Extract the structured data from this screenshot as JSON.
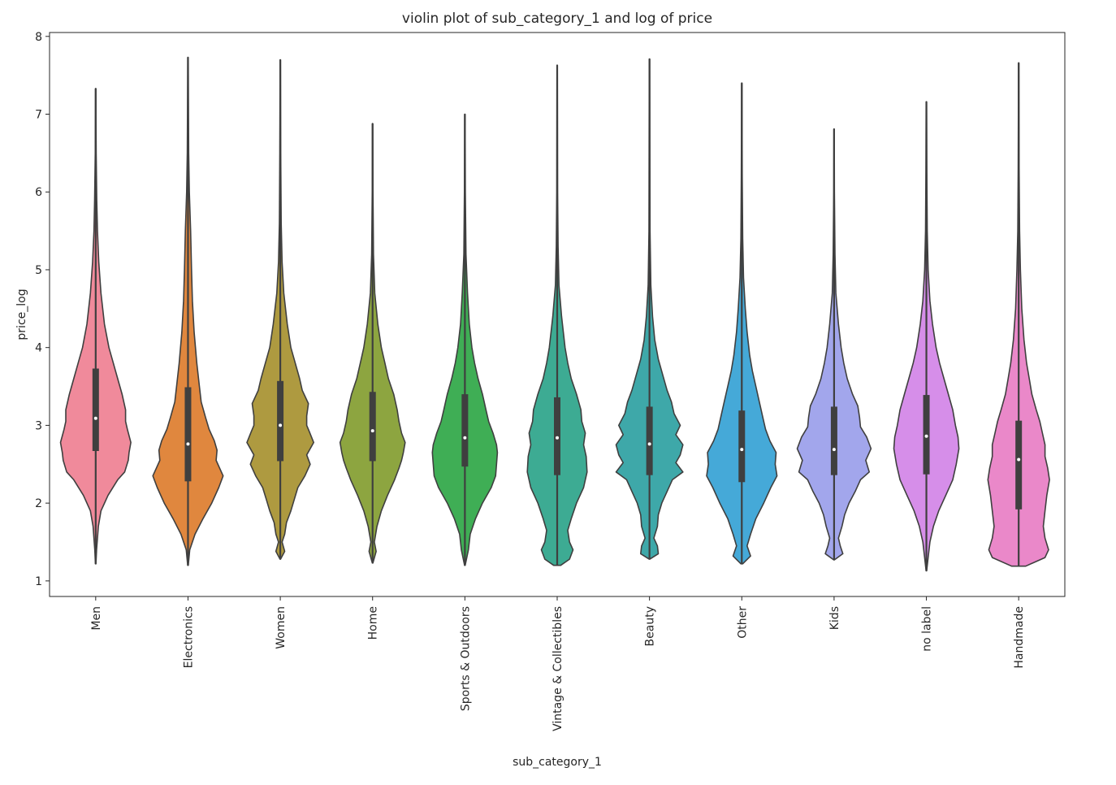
{
  "chart_data": {
    "type": "violin",
    "title": "violin plot of sub_category_1 and log of price",
    "xlabel": "sub_category_1",
    "ylabel": "price_log",
    "ylim": [
      0.8,
      8.05
    ],
    "yticks": [
      1,
      2,
      3,
      4,
      5,
      6,
      7,
      8
    ],
    "grid": false,
    "categories": [
      "Men",
      "Electronics",
      "Women",
      "Home",
      "Sports & Outdoors",
      "Vintage & Collectibles",
      "Beauty",
      "Other",
      "Kids",
      "no label",
      "Handmade"
    ],
    "colors": [
      "#f08a9b",
      "#e0873e",
      "#ae9a40",
      "#8da540",
      "#3fae55",
      "#3dab93",
      "#3ea8a9",
      "#45a9d8",
      "#a2a6ec",
      "#d68ee9",
      "#ea88c9"
    ],
    "series": [
      {
        "name": "Men",
        "min": 1.22,
        "q1": 2.67,
        "median": 3.09,
        "q3": 3.73,
        "max": 7.33,
        "shape": [
          [
            1.22,
            0.003
          ],
          [
            1.4,
            0.01
          ],
          [
            1.7,
            0.03
          ],
          [
            1.9,
            0.06
          ],
          [
            2.1,
            0.14
          ],
          [
            2.3,
            0.25
          ],
          [
            2.4,
            0.33
          ],
          [
            2.55,
            0.37
          ],
          [
            2.65,
            0.38
          ],
          [
            2.78,
            0.4
          ],
          [
            2.95,
            0.36
          ],
          [
            3.05,
            0.34
          ],
          [
            3.2,
            0.34
          ],
          [
            3.4,
            0.3
          ],
          [
            3.6,
            0.25
          ],
          [
            3.8,
            0.2
          ],
          [
            4.0,
            0.15
          ],
          [
            4.3,
            0.1
          ],
          [
            4.7,
            0.06
          ],
          [
            5.1,
            0.035
          ],
          [
            5.5,
            0.02
          ],
          [
            5.9,
            0.012
          ],
          [
            6.5,
            0.005
          ],
          [
            7.33,
            0.002
          ]
        ]
      },
      {
        "name": "Electronics",
        "min": 1.2,
        "q1": 2.28,
        "median": 2.76,
        "q3": 3.49,
        "max": 7.73,
        "shape": [
          [
            1.2,
            0.003
          ],
          [
            1.4,
            0.02
          ],
          [
            1.6,
            0.08
          ],
          [
            1.8,
            0.17
          ],
          [
            2.0,
            0.27
          ],
          [
            2.2,
            0.35
          ],
          [
            2.35,
            0.4
          ],
          [
            2.45,
            0.36
          ],
          [
            2.55,
            0.32
          ],
          [
            2.68,
            0.33
          ],
          [
            2.8,
            0.3
          ],
          [
            2.95,
            0.24
          ],
          [
            3.1,
            0.2
          ],
          [
            3.3,
            0.15
          ],
          [
            3.5,
            0.13
          ],
          [
            3.8,
            0.1
          ],
          [
            4.2,
            0.07
          ],
          [
            4.6,
            0.05
          ],
          [
            5.0,
            0.04
          ],
          [
            5.5,
            0.03
          ],
          [
            6.0,
            0.015
          ],
          [
            6.5,
            0.008
          ],
          [
            7.73,
            0.002
          ]
        ]
      },
      {
        "name": "Women",
        "min": 1.28,
        "q1": 2.54,
        "median": 3.0,
        "q3": 3.57,
        "max": 7.7,
        "shape": [
          [
            1.28,
            0.003
          ],
          [
            1.38,
            0.05
          ],
          [
            1.5,
            0.02
          ],
          [
            1.6,
            0.05
          ],
          [
            1.75,
            0.07
          ],
          [
            1.9,
            0.12
          ],
          [
            2.05,
            0.16
          ],
          [
            2.2,
            0.2
          ],
          [
            2.35,
            0.28
          ],
          [
            2.5,
            0.34
          ],
          [
            2.62,
            0.3
          ],
          [
            2.78,
            0.38
          ],
          [
            2.92,
            0.33
          ],
          [
            3.0,
            0.3
          ],
          [
            3.12,
            0.3
          ],
          [
            3.28,
            0.32
          ],
          [
            3.45,
            0.25
          ],
          [
            3.6,
            0.22
          ],
          [
            3.8,
            0.17
          ],
          [
            4.0,
            0.12
          ],
          [
            4.3,
            0.08
          ],
          [
            4.7,
            0.04
          ],
          [
            5.1,
            0.02
          ],
          [
            5.6,
            0.01
          ],
          [
            6.5,
            0.005
          ],
          [
            7.7,
            0.002
          ]
        ]
      },
      {
        "name": "Home",
        "min": 1.23,
        "q1": 2.54,
        "median": 2.93,
        "q3": 3.43,
        "max": 6.88,
        "shape": [
          [
            1.23,
            0.003
          ],
          [
            1.38,
            0.04
          ],
          [
            1.5,
            0.02
          ],
          [
            1.7,
            0.05
          ],
          [
            1.9,
            0.1
          ],
          [
            2.1,
            0.17
          ],
          [
            2.3,
            0.25
          ],
          [
            2.45,
            0.3
          ],
          [
            2.55,
            0.33
          ],
          [
            2.65,
            0.35
          ],
          [
            2.78,
            0.37
          ],
          [
            2.9,
            0.33
          ],
          [
            3.05,
            0.3
          ],
          [
            3.2,
            0.28
          ],
          [
            3.4,
            0.24
          ],
          [
            3.6,
            0.18
          ],
          [
            3.8,
            0.14
          ],
          [
            4.0,
            0.1
          ],
          [
            4.3,
            0.06
          ],
          [
            4.7,
            0.025
          ],
          [
            5.2,
            0.01
          ],
          [
            6.0,
            0.004
          ],
          [
            6.88,
            0.002
          ]
        ]
      },
      {
        "name": "Sports & Outdoors",
        "min": 1.2,
        "q1": 2.47,
        "median": 2.84,
        "q3": 3.4,
        "max": 7.0,
        "shape": [
          [
            1.2,
            0.003
          ],
          [
            1.4,
            0.04
          ],
          [
            1.6,
            0.06
          ],
          [
            1.8,
            0.12
          ],
          [
            2.0,
            0.2
          ],
          [
            2.2,
            0.3
          ],
          [
            2.35,
            0.35
          ],
          [
            2.5,
            0.36
          ],
          [
            2.65,
            0.37
          ],
          [
            2.75,
            0.36
          ],
          [
            2.9,
            0.32
          ],
          [
            3.05,
            0.27
          ],
          [
            3.2,
            0.24
          ],
          [
            3.4,
            0.2
          ],
          [
            3.6,
            0.15
          ],
          [
            3.8,
            0.11
          ],
          [
            4.0,
            0.08
          ],
          [
            4.3,
            0.05
          ],
          [
            4.7,
            0.03
          ],
          [
            5.2,
            0.012
          ],
          [
            6.0,
            0.005
          ],
          [
            7.0,
            0.002
          ]
        ]
      },
      {
        "name": "Vintage & Collectibles",
        "min": 1.2,
        "q1": 2.36,
        "median": 2.84,
        "q3": 3.36,
        "max": 7.63,
        "shape": [
          [
            1.2,
            0.04
          ],
          [
            1.28,
            0.14
          ],
          [
            1.4,
            0.18
          ],
          [
            1.5,
            0.14
          ],
          [
            1.65,
            0.12
          ],
          [
            1.8,
            0.16
          ],
          [
            2.0,
            0.22
          ],
          [
            2.2,
            0.3
          ],
          [
            2.4,
            0.34
          ],
          [
            2.6,
            0.33
          ],
          [
            2.75,
            0.3
          ],
          [
            2.9,
            0.32
          ],
          [
            3.05,
            0.28
          ],
          [
            3.2,
            0.27
          ],
          [
            3.4,
            0.22
          ],
          [
            3.6,
            0.16
          ],
          [
            3.8,
            0.12
          ],
          [
            4.0,
            0.09
          ],
          [
            4.4,
            0.05
          ],
          [
            4.8,
            0.02
          ],
          [
            5.3,
            0.01
          ],
          [
            6.0,
            0.005
          ],
          [
            7.63,
            0.002
          ]
        ]
      },
      {
        "name": "Beauty",
        "min": 1.28,
        "q1": 2.36,
        "median": 2.76,
        "q3": 3.24,
        "max": 7.71,
        "shape": [
          [
            1.28,
            0.003
          ],
          [
            1.35,
            0.1
          ],
          [
            1.45,
            0.09
          ],
          [
            1.55,
            0.05
          ],
          [
            1.7,
            0.09
          ],
          [
            1.85,
            0.1
          ],
          [
            2.0,
            0.14
          ],
          [
            2.15,
            0.2
          ],
          [
            2.3,
            0.26
          ],
          [
            2.4,
            0.38
          ],
          [
            2.52,
            0.3
          ],
          [
            2.62,
            0.35
          ],
          [
            2.75,
            0.38
          ],
          [
            2.88,
            0.3
          ],
          [
            3.0,
            0.35
          ],
          [
            3.15,
            0.28
          ],
          [
            3.3,
            0.25
          ],
          [
            3.45,
            0.2
          ],
          [
            3.65,
            0.15
          ],
          [
            3.85,
            0.1
          ],
          [
            4.1,
            0.06
          ],
          [
            4.4,
            0.035
          ],
          [
            4.8,
            0.015
          ],
          [
            5.5,
            0.006
          ],
          [
            7.71,
            0.002
          ]
        ]
      },
      {
        "name": "Other",
        "min": 1.22,
        "q1": 2.27,
        "median": 2.69,
        "q3": 3.19,
        "max": 7.4,
        "shape": [
          [
            1.22,
            0.01
          ],
          [
            1.32,
            0.1
          ],
          [
            1.45,
            0.06
          ],
          [
            1.6,
            0.1
          ],
          [
            1.8,
            0.16
          ],
          [
            2.0,
            0.25
          ],
          [
            2.2,
            0.33
          ],
          [
            2.35,
            0.4
          ],
          [
            2.5,
            0.38
          ],
          [
            2.65,
            0.39
          ],
          [
            2.8,
            0.32
          ],
          [
            2.95,
            0.27
          ],
          [
            3.1,
            0.24
          ],
          [
            3.3,
            0.2
          ],
          [
            3.5,
            0.16
          ],
          [
            3.7,
            0.12
          ],
          [
            3.9,
            0.09
          ],
          [
            4.2,
            0.06
          ],
          [
            4.5,
            0.04
          ],
          [
            4.9,
            0.02
          ],
          [
            5.4,
            0.01
          ],
          [
            6.2,
            0.005
          ],
          [
            7.4,
            0.002
          ]
        ]
      },
      {
        "name": "Kids",
        "min": 1.27,
        "q1": 2.36,
        "median": 2.69,
        "q3": 3.24,
        "max": 6.81,
        "shape": [
          [
            1.27,
            0.003
          ],
          [
            1.35,
            0.1
          ],
          [
            1.45,
            0.07
          ],
          [
            1.55,
            0.05
          ],
          [
            1.7,
            0.09
          ],
          [
            1.85,
            0.12
          ],
          [
            2.0,
            0.17
          ],
          [
            2.15,
            0.24
          ],
          [
            2.3,
            0.3
          ],
          [
            2.4,
            0.4
          ],
          [
            2.55,
            0.36
          ],
          [
            2.7,
            0.42
          ],
          [
            2.85,
            0.37
          ],
          [
            2.98,
            0.3
          ],
          [
            3.1,
            0.29
          ],
          [
            3.25,
            0.27
          ],
          [
            3.4,
            0.21
          ],
          [
            3.6,
            0.15
          ],
          [
            3.8,
            0.11
          ],
          [
            4.0,
            0.08
          ],
          [
            4.3,
            0.05
          ],
          [
            4.7,
            0.02
          ],
          [
            5.2,
            0.01
          ],
          [
            6.0,
            0.004
          ],
          [
            6.81,
            0.002
          ]
        ]
      },
      {
        "name": "no label",
        "min": 1.13,
        "q1": 2.37,
        "median": 2.86,
        "q3": 3.39,
        "max": 7.16,
        "shape": [
          [
            1.13,
            0.003
          ],
          [
            1.3,
            0.02
          ],
          [
            1.5,
            0.04
          ],
          [
            1.7,
            0.08
          ],
          [
            1.9,
            0.14
          ],
          [
            2.1,
            0.22
          ],
          [
            2.3,
            0.3
          ],
          [
            2.5,
            0.34
          ],
          [
            2.7,
            0.37
          ],
          [
            2.85,
            0.36
          ],
          [
            3.0,
            0.33
          ],
          [
            3.2,
            0.3
          ],
          [
            3.4,
            0.25
          ],
          [
            3.6,
            0.2
          ],
          [
            3.8,
            0.15
          ],
          [
            4.0,
            0.11
          ],
          [
            4.3,
            0.07
          ],
          [
            4.6,
            0.04
          ],
          [
            5.0,
            0.02
          ],
          [
            5.5,
            0.01
          ],
          [
            6.3,
            0.005
          ],
          [
            7.16,
            0.002
          ]
        ]
      },
      {
        "name": "Handmade",
        "min": 1.19,
        "q1": 1.92,
        "median": 2.56,
        "q3": 3.06,
        "max": 7.66,
        "shape": [
          [
            1.19,
            0.08
          ],
          [
            1.3,
            0.3
          ],
          [
            1.4,
            0.34
          ],
          [
            1.55,
            0.3
          ],
          [
            1.7,
            0.28
          ],
          [
            1.9,
            0.3
          ],
          [
            2.1,
            0.32
          ],
          [
            2.3,
            0.35
          ],
          [
            2.45,
            0.33
          ],
          [
            2.6,
            0.3
          ],
          [
            2.75,
            0.3
          ],
          [
            2.9,
            0.27
          ],
          [
            3.05,
            0.24
          ],
          [
            3.2,
            0.2
          ],
          [
            3.4,
            0.15
          ],
          [
            3.6,
            0.12
          ],
          [
            3.8,
            0.09
          ],
          [
            4.1,
            0.06
          ],
          [
            4.5,
            0.035
          ],
          [
            5.0,
            0.02
          ],
          [
            5.5,
            0.01
          ],
          [
            6.3,
            0.005
          ],
          [
            7.66,
            0.002
          ]
        ]
      }
    ]
  }
}
